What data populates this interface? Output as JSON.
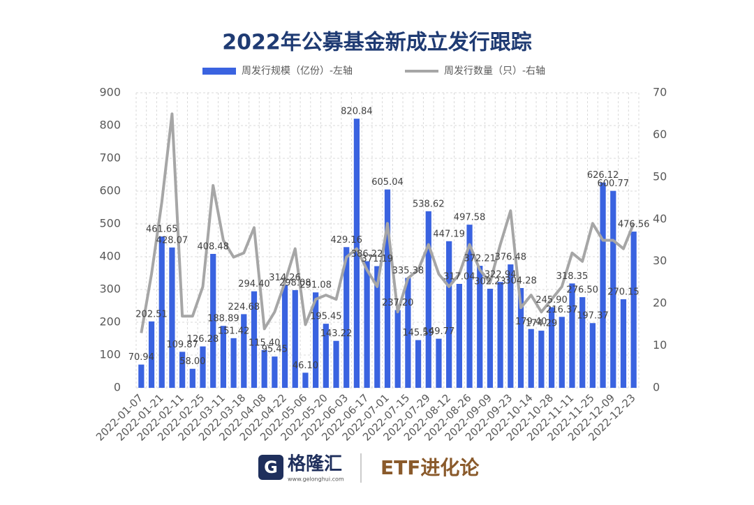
{
  "chart_data": {
    "type": "bar_line",
    "title": "2022年公募基金新成立发行跟踪",
    "categories": [
      "2022-01-07",
      null,
      "2022-01-21",
      null,
      "2022-02-11",
      null,
      "2022-02-25",
      null,
      "2022-03-11",
      null,
      "2022-03-18",
      null,
      "2022-04-08",
      null,
      "2022-04-22",
      null,
      "2022-05-06",
      null,
      "2022-05-20",
      null,
      "2022-06-03",
      null,
      "2022-06-17",
      null,
      "2022-07-01",
      null,
      "2022-07-15",
      null,
      "2022-07-29",
      null,
      "2022-08-12",
      null,
      "2022-08-26",
      null,
      "2022-09-09",
      null,
      "2022-09-23",
      null,
      "2022-10-14",
      null,
      "2022-10-28",
      null,
      "2022-11-11",
      null,
      "2022-11-25",
      null,
      "2022-12-09",
      null,
      "2022-12-23"
    ],
    "series": [
      {
        "name": "周发行规模（亿份）-左轴",
        "color": "#3a63e0",
        "axis": "y",
        "values": [
          70.94,
          202.51,
          461.65,
          428.07,
          109.87,
          58.0,
          126.28,
          408.48,
          188.89,
          151.42,
          224.68,
          294.4,
          115.4,
          95.45,
          314.26,
          298.08,
          46.1,
          291.08,
          195.45,
          143.22,
          429.16,
          820.84,
          386.22,
          371.19,
          605.04,
          237.2,
          335.38,
          145.59,
          538.62,
          149.77,
          447.19,
          317.04,
          497.58,
          372.21,
          302.23,
          322.94,
          376.48,
          304.28,
          179.4,
          174.29,
          245.9,
          216.37,
          318.35,
          276.5,
          197.37,
          626.12,
          600.77,
          270.15,
          476.56
        ],
        "value_labels": [
          "70.94",
          "202.51",
          "461.65",
          "428.07",
          "109.87",
          "58.00",
          "126.28",
          "408.48",
          "188.89",
          "151.42",
          "224.68",
          "294.40",
          "115.40",
          "95.45",
          "314.26",
          "298.08",
          "46.10",
          "291.08",
          "195.45",
          "143.22",
          "429.16",
          "820.84",
          "386.22",
          "371.19",
          "605.04",
          "237.20",
          "335.38",
          "145.59",
          "538.62",
          "149.77",
          "447.19",
          "317.04",
          "497.58",
          "372.21",
          "302.23",
          "322.94",
          "376.48",
          "304.28",
          "179.40",
          "174.29",
          "245.90",
          "216.37",
          "318.35",
          "276.50",
          "197.37",
          "626.12",
          "600.77",
          "270.15",
          "476.56"
        ]
      },
      {
        "name": "周发行数量（只）-右轴",
        "color": "#a6a6a6",
        "axis": "y2",
        "values": [
          13,
          27,
          44,
          65,
          17,
          17,
          24,
          48,
          35,
          31,
          32,
          38,
          14,
          18,
          25,
          33,
          15,
          21,
          22,
          21,
          31,
          33,
          28,
          24,
          39,
          18,
          26,
          28,
          34,
          27,
          24,
          27,
          34,
          28,
          25,
          34,
          42,
          19,
          22,
          18,
          21,
          24,
          32,
          30,
          39,
          35,
          35,
          33,
          39
        ]
      }
    ],
    "ylim": [
      0,
      900
    ],
    "yticks": [
      0,
      100,
      200,
      300,
      400,
      500,
      600,
      700,
      800,
      900
    ],
    "y2lim": [
      0,
      70
    ],
    "y2ticks": [
      0,
      10,
      20,
      30,
      40,
      50,
      60,
      70
    ],
    "grid": true
  },
  "footer": {
    "logo": "格隆汇",
    "url": "www.gelonghui.com",
    "brand": "ETF进化论"
  }
}
